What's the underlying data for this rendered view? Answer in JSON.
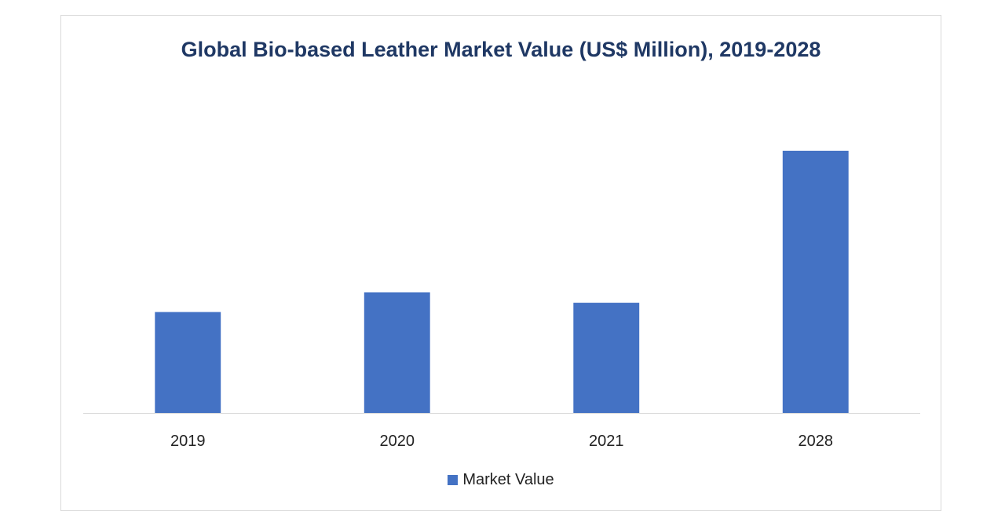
{
  "chart_data": {
    "type": "bar",
    "title": "Global Bio-based Leather Market Value (US$ Million), 2019-2028",
    "categories": [
      "2019",
      "2020",
      "2021",
      "2028"
    ],
    "series": [
      {
        "name": "Market Value",
        "values": [
          38.5,
          46,
          42,
          100
        ],
        "color": "#4472c4"
      }
    ],
    "xlabel": "",
    "ylabel": "",
    "ylim": [
      0,
      100
    ],
    "y_axis_shown": false,
    "grid": false,
    "legend_position": "bottom"
  }
}
